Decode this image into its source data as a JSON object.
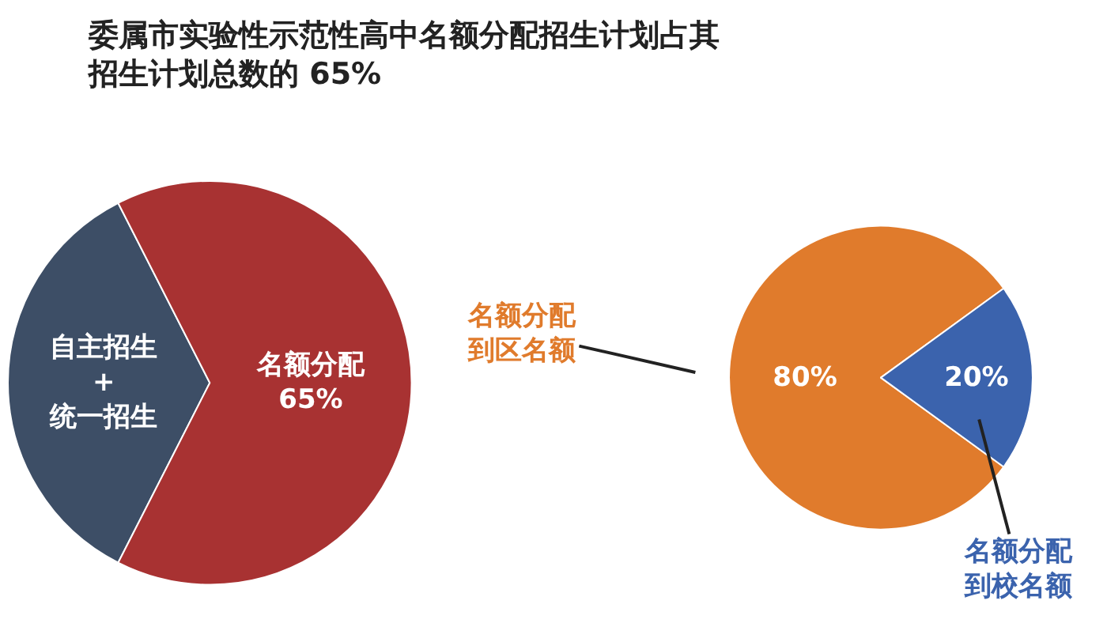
{
  "chart_data": [
    {
      "type": "pie",
      "title": "委属市实验性示范性高中名额分配招生计划占其招生计划总数的 65%",
      "categories": [
        "自主招生+统一招生",
        "名额分配"
      ],
      "values": [
        35,
        65
      ],
      "colors": [
        "#3d4e66",
        "#a83232"
      ],
      "value_labels": [
        null,
        "65%"
      ]
    },
    {
      "type": "pie",
      "categories": [
        "名额分配到区名额",
        "名额分配到校名额"
      ],
      "values": [
        80,
        20
      ],
      "colors": [
        "#e07b2c",
        "#3b63ad"
      ],
      "value_labels": [
        "80%",
        "20%"
      ]
    }
  ]
}
